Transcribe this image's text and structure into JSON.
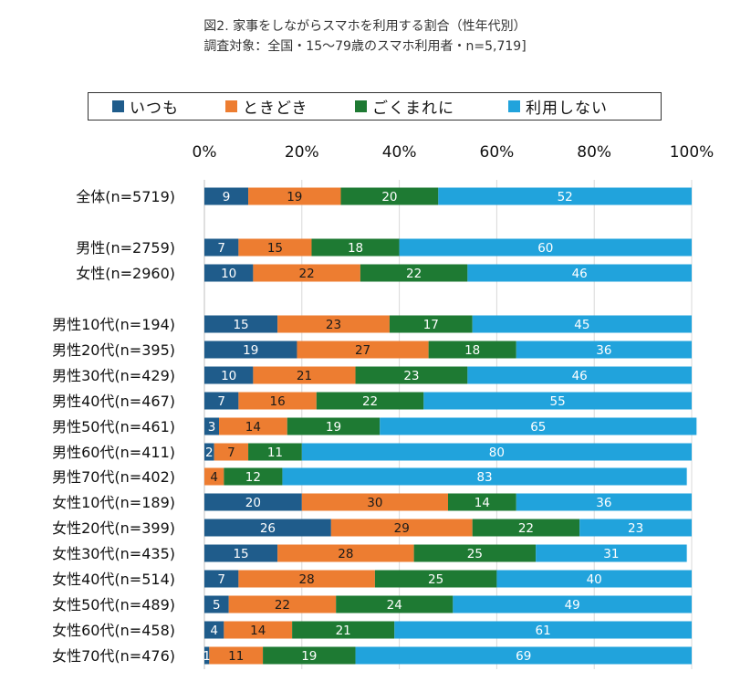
{
  "title_line1": "図2.  家事をしながらスマホを利用する割合（性年代別）",
  "title_line2": "調査対象：全国・15〜79歳のスマホ利用者・n=5,719]",
  "colors": {
    "いつも": "#1f5c8b",
    "ときどき": "#ed7d31",
    "ごくまれに": "#1e7a33",
    "利用しない": "#21a3dc"
  },
  "chart_data": {
    "type": "bar",
    "orientation": "horizontal",
    "stacked": true,
    "percent_stacked": true,
    "title": "図2.  家事をしながらスマホを利用する割合（性年代別）",
    "subtitle": "調査対象：全国・15〜79歳のスマホ利用者・n=5,719]",
    "xlim": [
      0,
      100
    ],
    "x_ticks": [
      "0%",
      "20%",
      "40%",
      "60%",
      "80%",
      "100%"
    ],
    "legend_position": "top",
    "categories": [
      "全体(n=5719)",
      "男性(n=2759)",
      "女性(n=2960)",
      "男性10代(n=194)",
      "男性20代(n=395)",
      "男性30代(n=429)",
      "男性40代(n=467)",
      "男性50代(n=461)",
      "男性60代(n=411)",
      "男性70代(n=402)",
      "女性10代(n=189)",
      "女性20代(n=399)",
      "女性30代(n=435)",
      "女性40代(n=514)",
      "女性50代(n=489)",
      "女性60代(n=458)",
      "女性70代(n=476)"
    ],
    "series": [
      {
        "name": "いつも",
        "values": [
          9,
          7,
          10,
          15,
          19,
          10,
          7,
          3,
          2,
          0,
          20,
          26,
          15,
          7,
          5,
          4,
          1
        ]
      },
      {
        "name": "ときどき",
        "values": [
          19,
          15,
          22,
          23,
          27,
          21,
          16,
          14,
          7,
          4,
          30,
          29,
          28,
          28,
          22,
          14,
          11
        ]
      },
      {
        "name": "ごくまれに",
        "values": [
          20,
          18,
          22,
          17,
          18,
          23,
          22,
          19,
          11,
          12,
          14,
          22,
          25,
          25,
          24,
          21,
          19
        ]
      },
      {
        "name": "利用しない",
        "values": [
          52,
          60,
          46,
          45,
          36,
          46,
          55,
          65,
          80,
          83,
          36,
          23,
          31,
          40,
          49,
          61,
          69
        ]
      }
    ],
    "data_labels": [
      [
        "9",
        "19",
        "20",
        "52"
      ],
      [
        "7",
        "15",
        "18",
        "60"
      ],
      [
        "10",
        "22",
        "22",
        "46"
      ],
      [
        "15",
        "23",
        "17",
        "45"
      ],
      [
        "19",
        "27",
        "18",
        "36"
      ],
      [
        "10",
        "21",
        "23",
        "46"
      ],
      [
        "7",
        "16",
        "22",
        "55"
      ],
      [
        "3",
        "14",
        "19",
        "65"
      ],
      [
        "2",
        "7",
        "11",
        "80"
      ],
      [
        "",
        "4",
        "12",
        "83"
      ],
      [
        "20",
        "30",
        "14",
        "36"
      ],
      [
        "26",
        "29",
        "22",
        "23"
      ],
      [
        "15",
        "28",
        "25",
        "31"
      ],
      [
        "7",
        "28",
        "25",
        "40"
      ],
      [
        "5",
        "22",
        "24",
        "49"
      ],
      [
        "4",
        "14",
        "21",
        "61"
      ],
      [
        "1",
        "11",
        "19",
        "69"
      ]
    ]
  }
}
